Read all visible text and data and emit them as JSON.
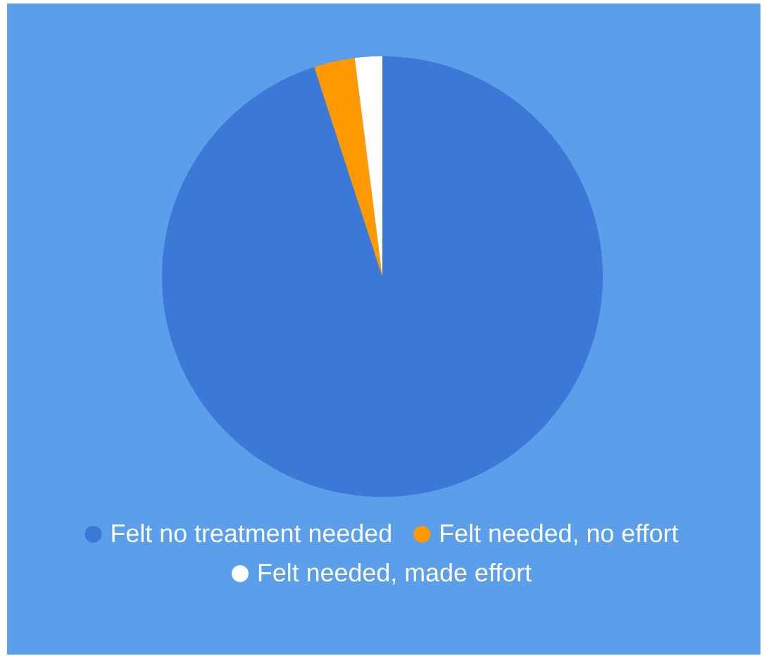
{
  "chart_data": {
    "type": "pie",
    "categories": [
      "Felt no treatment needed",
      "Felt needed, no effort",
      "Felt needed, made effort"
    ],
    "values": [
      95,
      3,
      2
    ],
    "colors": [
      "#3c78d8",
      "#ff9900",
      "#ffffff"
    ],
    "legend": "bottom"
  }
}
